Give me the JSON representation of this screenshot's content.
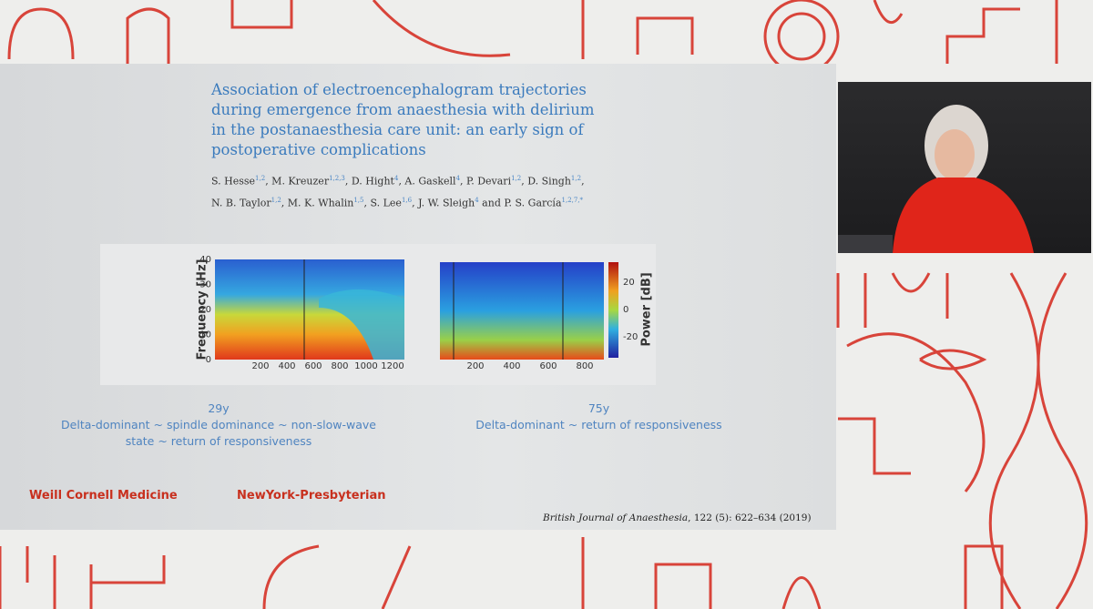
{
  "slide": {
    "title_lines": [
      "Association of electroencephalogram trajectories",
      "during emergence from anaesthesia with delirium",
      "in the postanaesthesia care unit: an early sign of",
      "postoperative complications"
    ],
    "author_lines": [
      [
        {
          "text": "S. Hesse",
          "sup": "1,2"
        },
        {
          "text": ", M. Kreuzer",
          "sup": "1,2,3"
        },
        {
          "text": ", D. Hight",
          "sup": "4"
        },
        {
          "text": ", A. Gaskell",
          "sup": "4"
        },
        {
          "text": ", P. Devari",
          "sup": "1,2"
        },
        {
          "text": ", D. Singh",
          "sup": "1,2"
        },
        {
          "text": ",",
          "sup": ""
        }
      ],
      [
        {
          "text": "N. B. Taylor",
          "sup": "1,2"
        },
        {
          "text": ", M. K. Whalin",
          "sup": "1,5"
        },
        {
          "text": ", S. Lee",
          "sup": "1,6"
        },
        {
          "text": ", J. W. Sleigh",
          "sup": "4"
        },
        {
          "text": " and P. S. García",
          "sup": "1,2,7,*"
        }
      ]
    ],
    "figures": {
      "left": {
        "y_label": "Frequency [Hz]",
        "yticks": [
          0,
          10,
          20,
          30,
          40
        ],
        "xticks": [
          200,
          400,
          600,
          800,
          1000,
          1200
        ]
      },
      "right": {
        "xticks": [
          200,
          400,
          600,
          800
        ],
        "colorbar_label": "Power [dB]",
        "colorbar_ticks": [
          20,
          0,
          -20
        ]
      }
    },
    "captions": [
      {
        "age": "29y",
        "lines": [
          "Delta-dominant ~ spindle dominance ~ non-slow-wave",
          "state ~ return of responsiveness"
        ]
      },
      {
        "age": "75y",
        "lines": [
          "Delta-dominant ~ return of responsiveness"
        ]
      }
    ],
    "logos": [
      "Weill Cornell Medicine",
      "NewYork-Presbyterian"
    ],
    "citation": {
      "journal": "British Journal of Anaesthesia",
      "details": ", 122 (5): 622–634 (2019)"
    }
  }
}
